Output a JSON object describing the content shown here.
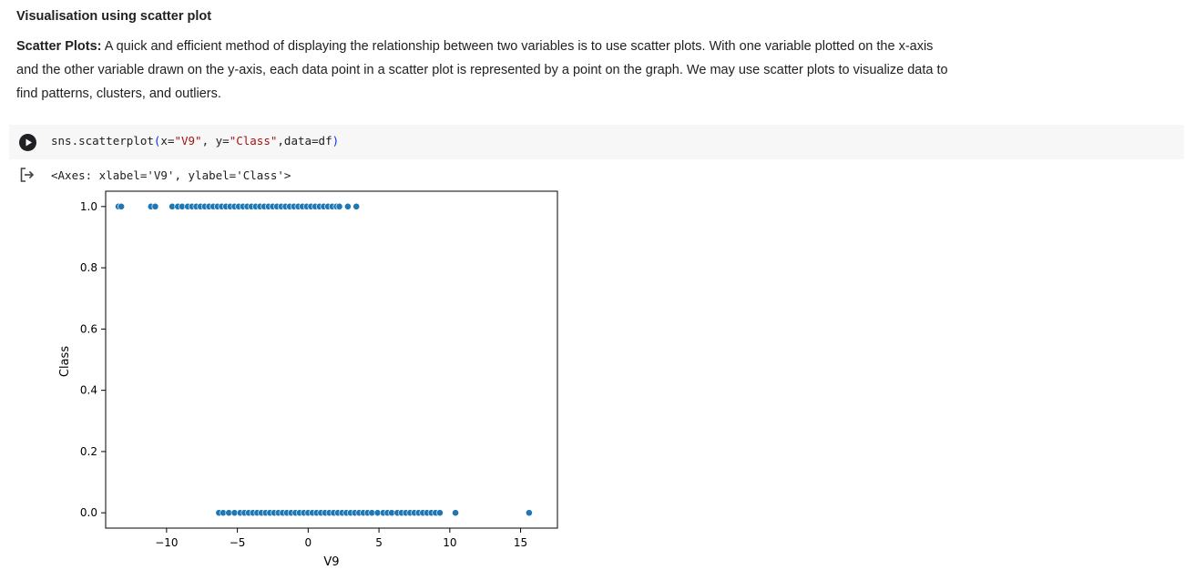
{
  "markdown": {
    "heading": "Visualisation using scatter plot",
    "para_bold": "Scatter Plots:",
    "para_text": " A quick and efficient method of displaying the relationship between two variables is to use scatter plots. With one variable plotted on the x-axis and the other variable drawn on the y-axis, each data point in a scatter plot is represented by a point on the graph. We may use scatter plots to visualize data to find patterns, clusters, and outliers."
  },
  "code_cell": {
    "code_prefix": "sns.scatterplot",
    "code_open": "(",
    "code_x": "x=",
    "code_x_val": "\"V9\"",
    "code_sep": ", y=",
    "code_y_val": "\"Class\"",
    "code_rest": ",data=df",
    "code_close": ")",
    "run_icon": "play-icon"
  },
  "output": {
    "icon": "output-redirect-icon",
    "text": "<Axes: xlabel='V9', ylabel='Class'>"
  },
  "chart_data": {
    "type": "scatter",
    "xlabel": "V9",
    "ylabel": "Class",
    "xlim": [
      -14.3,
      17.6
    ],
    "ylim": [
      -0.05,
      1.05
    ],
    "xticks": [
      -10,
      -5,
      0,
      5,
      10,
      15
    ],
    "xtick_labels": [
      "−10",
      "−5",
      "0",
      "5",
      "10",
      "15"
    ],
    "yticks": [
      0.0,
      0.2,
      0.4,
      0.6,
      0.8,
      1.0
    ],
    "ytick_labels": [
      "0.0",
      "0.2",
      "0.4",
      "0.6",
      "0.8",
      "1.0"
    ],
    "grid": false,
    "point_color": "#1f77b4",
    "series": [
      {
        "values_x": [
          -13.4,
          -13.2,
          -11.1,
          -10.8,
          -9.6,
          -9.2,
          -8.9,
          -8.5,
          -8.2,
          -7.9,
          -7.6,
          -7.3,
          -7.0,
          -6.7,
          -6.4,
          -6.1,
          -5.8,
          -5.5,
          -5.2,
          -4.9,
          -4.6,
          -4.3,
          -4.0,
          -3.7,
          -3.4,
          -3.1,
          -2.8,
          -2.5,
          -2.2,
          -1.9,
          -1.6,
          -1.3,
          -1.0,
          -0.7,
          -0.4,
          -0.1,
          0.2,
          0.5,
          0.8,
          1.1,
          1.4,
          1.7,
          2.0,
          2.2,
          2.8,
          3.4
        ],
        "values_y": [
          1,
          1,
          1,
          1,
          1,
          1,
          1,
          1,
          1,
          1,
          1,
          1,
          1,
          1,
          1,
          1,
          1,
          1,
          1,
          1,
          1,
          1,
          1,
          1,
          1,
          1,
          1,
          1,
          1,
          1,
          1,
          1,
          1,
          1,
          1,
          1,
          1,
          1,
          1,
          1,
          1,
          1,
          1,
          1,
          1,
          1
        ]
      },
      {
        "values_x": [
          -6.3,
          -6.0,
          -5.6,
          -5.2,
          -4.8,
          -4.5,
          -4.2,
          -3.9,
          -3.6,
          -3.3,
          -3.0,
          -2.7,
          -2.4,
          -2.1,
          -1.8,
          -1.5,
          -1.2,
          -0.9,
          -0.6,
          -0.3,
          0.0,
          0.3,
          0.6,
          0.9,
          1.2,
          1.5,
          1.8,
          2.1,
          2.4,
          2.7,
          3.0,
          3.3,
          3.6,
          3.9,
          4.2,
          4.5,
          4.9,
          5.3,
          5.6,
          5.9,
          6.3,
          6.6,
          6.9,
          7.2,
          7.5,
          7.8,
          8.1,
          8.4,
          8.7,
          9.0,
          9.3,
          10.4,
          15.6
        ],
        "values_y": [
          0,
          0,
          0,
          0,
          0,
          0,
          0,
          0,
          0,
          0,
          0,
          0,
          0,
          0,
          0,
          0,
          0,
          0,
          0,
          0,
          0,
          0,
          0,
          0,
          0,
          0,
          0,
          0,
          0,
          0,
          0,
          0,
          0,
          0,
          0,
          0,
          0,
          0,
          0,
          0,
          0,
          0,
          0,
          0,
          0,
          0,
          0,
          0,
          0,
          0,
          0,
          0,
          0
        ]
      }
    ]
  }
}
